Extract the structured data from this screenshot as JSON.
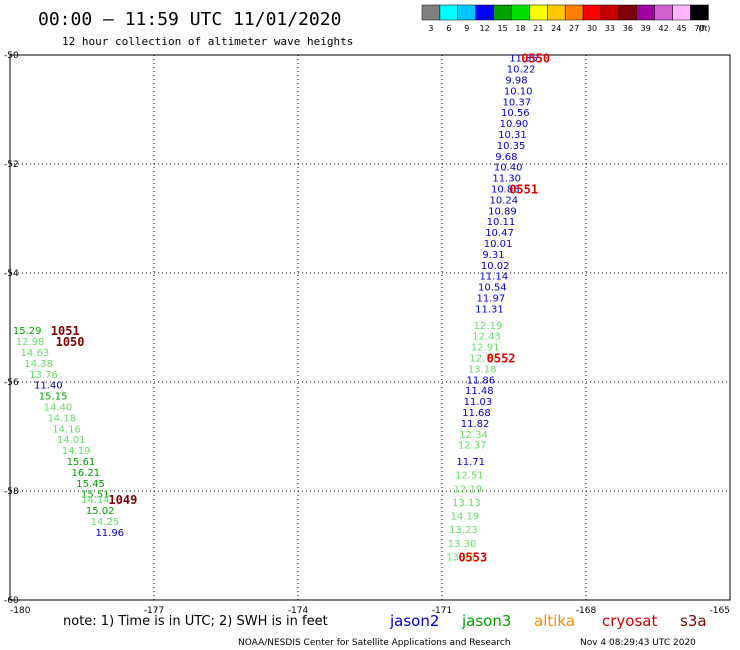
{
  "header": {
    "title": "00:00 — 11:59 UTC 11/01/2020",
    "subtitle": "12 hour collection of altimeter wave heights"
  },
  "legend": {
    "colors": [
      "#808080",
      "#00ffff",
      "#00c8ff",
      "#0000ff",
      "#00a000",
      "#00e000",
      "#ffff00",
      "#ffc800",
      "#ff8000",
      "#ff0000",
      "#c80000",
      "#800000",
      "#a000a0",
      "#d060d0",
      "#ffb4ff",
      "#000000"
    ],
    "labels": [
      "3",
      "6",
      "9",
      "12",
      "15",
      "18",
      "21",
      "24",
      "27",
      "30",
      "33",
      "36",
      "39",
      "42",
      "45",
      "70"
    ],
    "unit": "(ft)"
  },
  "footer": {
    "note": "note: 1) Time is in UTC; 2) SWH is in feet",
    "satellites": [
      {
        "name": "jason2",
        "color": "#0000cc"
      },
      {
        "name": "jason3",
        "color": "#00a000"
      },
      {
        "name": "altika",
        "color": "#ff8c00"
      },
      {
        "name": "cryosat",
        "color": "#cc0000"
      },
      {
        "name": "s3a",
        "color": "#800000"
      }
    ],
    "credit": "NOAA/NESDIS Center for Satellite Applications and Research",
    "timestamp": "Nov  4 08:29:43 UTC 2020"
  },
  "chart_data": {
    "type": "scatter",
    "x_axis": {
      "range": [
        -180,
        -165
      ],
      "ticks": [
        -180,
        -177,
        -174,
        -171,
        -168,
        -165
      ]
    },
    "y_axis": {
      "range": [
        -60,
        -50
      ],
      "ticks": [
        -50,
        -52,
        -54,
        -56,
        -58,
        -60
      ]
    },
    "grid": true,
    "points": [
      {
        "x": -169.6,
        "y": -50.05,
        "v": "11.35",
        "c": "#0000cc"
      },
      {
        "x": -169.65,
        "y": -50.25,
        "v": "10.22",
        "c": "#0000cc"
      },
      {
        "x": -169.68,
        "y": -50.45,
        "v": "9.98",
        "c": "#0000cc"
      },
      {
        "x": -169.71,
        "y": -50.65,
        "v": "10.10",
        "c": "#0000cc"
      },
      {
        "x": -169.74,
        "y": -50.85,
        "v": "10.37",
        "c": "#0000cc"
      },
      {
        "x": -169.77,
        "y": -51.05,
        "v": "10.56",
        "c": "#0000cc"
      },
      {
        "x": -169.8,
        "y": -51.25,
        "v": "10.90",
        "c": "#0000cc"
      },
      {
        "x": -169.83,
        "y": -51.45,
        "v": "10.31",
        "c": "#0000cc"
      },
      {
        "x": -169.86,
        "y": -51.65,
        "v": "10.35",
        "c": "#0000cc"
      },
      {
        "x": -169.89,
        "y": -51.85,
        "v": "9.68",
        "c": "#0000cc"
      },
      {
        "x": -169.92,
        "y": -52.05,
        "v": "10.40",
        "c": "#0000cc"
      },
      {
        "x": -169.95,
        "y": -52.25,
        "v": "11.30",
        "c": "#0000cc"
      },
      {
        "x": -169.98,
        "y": -52.45,
        "v": "10.88",
        "c": "#0000cc"
      },
      {
        "x": -170.01,
        "y": -52.65,
        "v": "10.24",
        "c": "#0000cc"
      },
      {
        "x": -170.04,
        "y": -52.85,
        "v": "10.89",
        "c": "#0000cc"
      },
      {
        "x": -170.07,
        "y": -53.05,
        "v": "10.11",
        "c": "#0000cc"
      },
      {
        "x": -170.1,
        "y": -53.25,
        "v": "10.47",
        "c": "#0000cc"
      },
      {
        "x": -170.13,
        "y": -53.45,
        "v": "10.01",
        "c": "#0000cc"
      },
      {
        "x": -170.16,
        "y": -53.65,
        "v": "9.31",
        "c": "#0000cc"
      },
      {
        "x": -170.19,
        "y": -53.85,
        "v": "10.02",
        "c": "#0000cc"
      },
      {
        "x": -170.22,
        "y": -54.05,
        "v": "11.14",
        "c": "#0000cc"
      },
      {
        "x": -170.25,
        "y": -54.25,
        "v": "10.54",
        "c": "#0000cc"
      },
      {
        "x": -170.28,
        "y": -54.45,
        "v": "11.97",
        "c": "#0000cc"
      },
      {
        "x": -170.31,
        "y": -54.65,
        "v": "11.31",
        "c": "#0000cc"
      },
      {
        "x": -170.34,
        "y": -54.95,
        "v": "12.19",
        "c": "#66dd66"
      },
      {
        "x": -170.37,
        "y": -55.15,
        "v": "12.43",
        "c": "#66dd66"
      },
      {
        "x": -170.4,
        "y": -55.35,
        "v": "12.91",
        "c": "#66dd66"
      },
      {
        "x": -170.43,
        "y": -55.55,
        "v": "12.71",
        "c": "#66dd66"
      },
      {
        "x": -170.46,
        "y": -55.75,
        "v": "13.18",
        "c": "#66dd66"
      },
      {
        "x": -170.49,
        "y": -55.95,
        "v": "11.86",
        "c": "#0000cc"
      },
      {
        "x": -170.52,
        "y": -56.15,
        "v": "11.48",
        "c": "#0000cc"
      },
      {
        "x": -170.55,
        "y": -56.35,
        "v": "11.03",
        "c": "#0000cc"
      },
      {
        "x": -170.58,
        "y": -56.55,
        "v": "11.68",
        "c": "#0000cc"
      },
      {
        "x": -170.61,
        "y": -56.75,
        "v": "11.82",
        "c": "#0000cc"
      },
      {
        "x": -170.64,
        "y": -56.95,
        "v": "12.34",
        "c": "#66dd66"
      },
      {
        "x": -170.67,
        "y": -57.15,
        "v": "12.37",
        "c": "#66dd66"
      },
      {
        "x": -170.7,
        "y": -57.45,
        "v": "11.71",
        "c": "#0000cc"
      },
      {
        "x": -170.73,
        "y": -57.7,
        "v": "12.51",
        "c": "#66dd66"
      },
      {
        "x": -170.76,
        "y": -57.95,
        "v": "12.19",
        "c": "#66dd66"
      },
      {
        "x": -170.79,
        "y": -58.2,
        "v": "13.13",
        "c": "#66dd66"
      },
      {
        "x": -170.82,
        "y": -58.45,
        "v": "14.19",
        "c": "#66dd66"
      },
      {
        "x": -170.85,
        "y": -58.7,
        "v": "13.23",
        "c": "#66dd66"
      },
      {
        "x": -170.88,
        "y": -58.95,
        "v": "13.30",
        "c": "#66dd66"
      },
      {
        "x": -170.91,
        "y": -59.2,
        "v": "13.38",
        "c": "#66dd66"
      },
      {
        "x": -179.94,
        "y": -55.05,
        "v": "15.29",
        "c": "#00a000"
      },
      {
        "x": -179.88,
        "y": -55.25,
        "v": "12.98",
        "c": "#66dd66"
      },
      {
        "x": -179.78,
        "y": -55.45,
        "v": "14.63",
        "c": "#66dd66"
      },
      {
        "x": -179.7,
        "y": -55.65,
        "v": "14.38",
        "c": "#66dd66"
      },
      {
        "x": -179.6,
        "y": -55.85,
        "v": "13.76",
        "c": "#66dd66"
      },
      {
        "x": -179.5,
        "y": -56.05,
        "v": "11.40",
        "c": "#0000cc"
      },
      {
        "x": -179.4,
        "y": -56.25,
        "v": "15.15",
        "c": "#00a000"
      },
      {
        "x": -179.3,
        "y": -56.45,
        "v": "14.40",
        "c": "#66dd66"
      },
      {
        "x": -179.22,
        "y": -56.65,
        "v": "14.18",
        "c": "#66dd66"
      },
      {
        "x": -179.12,
        "y": -56.85,
        "v": "14.16",
        "c": "#66dd66"
      },
      {
        "x": -179.02,
        "y": -57.05,
        "v": "14.01",
        "c": "#66dd66"
      },
      {
        "x": -178.92,
        "y": -57.25,
        "v": "14.19",
        "c": "#66dd66"
      },
      {
        "x": -178.82,
        "y": -57.45,
        "v": "15.61",
        "c": "#00a000"
      },
      {
        "x": -178.72,
        "y": -57.65,
        "v": "16.21",
        "c": "#00a000"
      },
      {
        "x": -178.62,
        "y": -57.85,
        "v": "15.45",
        "c": "#00a000"
      },
      {
        "x": -178.52,
        "y": -58.05,
        "v": "15.51",
        "c": "#00a000"
      },
      {
        "x": -178.52,
        "y": -58.15,
        "v": "14.14",
        "c": "#66dd66"
      },
      {
        "x": -178.42,
        "y": -58.35,
        "v": "15.02",
        "c": "#00a000"
      },
      {
        "x": -178.32,
        "y": -58.55,
        "v": "14.25",
        "c": "#66dd66"
      },
      {
        "x": -178.22,
        "y": -58.75,
        "v": "11.96",
        "c": "#0000cc"
      }
    ],
    "pass_labels": [
      {
        "x": -169.35,
        "y": -50.05,
        "text": "0550",
        "c": "#e00000"
      },
      {
        "x": -169.6,
        "y": -52.45,
        "text": "0551",
        "c": "#e00000"
      },
      {
        "x": -170.07,
        "y": -55.55,
        "text": "0552",
        "c": "#e00000"
      },
      {
        "x": -170.66,
        "y": -59.2,
        "text": "0553",
        "c": "#e00000"
      },
      {
        "x": -179.15,
        "y": -55.05,
        "text": "1051",
        "c": "#800000"
      },
      {
        "x": -179.05,
        "y": -55.25,
        "text": "1050",
        "c": "#800000"
      },
      {
        "x": -177.95,
        "y": -58.15,
        "text": "1049",
        "c": "#800000"
      }
    ]
  }
}
